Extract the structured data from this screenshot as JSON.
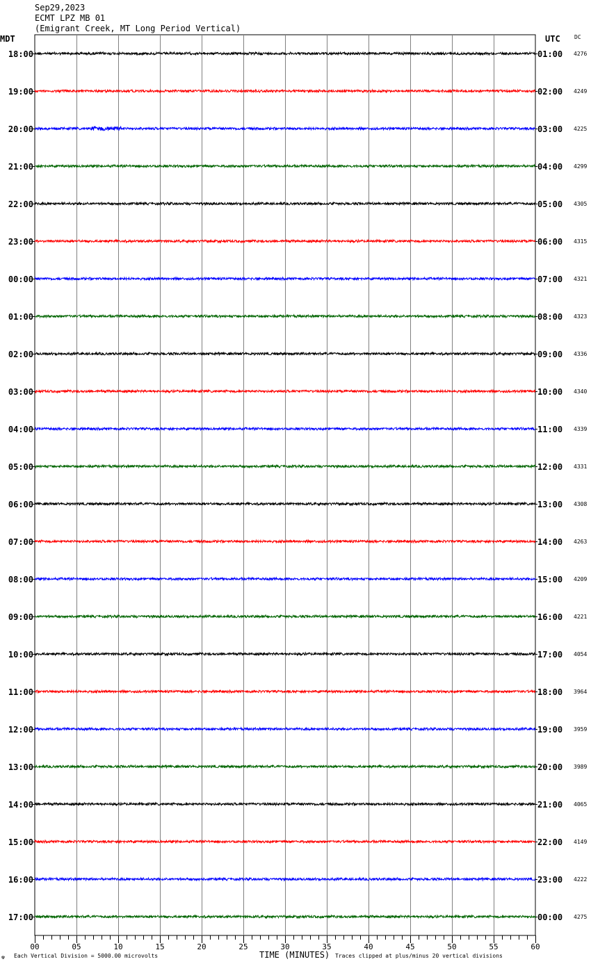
{
  "header": {
    "date": "Sep29,2023",
    "station": "ECMT LPZ MB 01",
    "location": "(Emigrant Creek, MT Long Period Vertical)"
  },
  "left_zone": "MDT",
  "right_zone": "UTC",
  "dc_label": "DC",
  "footer": {
    "left_mark": "☢",
    "division": "Each Vertical Division = 5000.00 microvolts",
    "xlabel": "TIME (MINUTES)",
    "clip": "Traces clipped at plus/minus 20 vertical divisions"
  },
  "colors": [
    "#000000",
    "#ff0000",
    "#0000ff",
    "#006400"
  ],
  "chart_data": {
    "type": "line",
    "xlabel": "TIME (MINUTES)",
    "xlim": [
      0,
      60
    ],
    "xticks": [
      "00",
      "05",
      "10",
      "15",
      "20",
      "25",
      "30",
      "35",
      "40",
      "45",
      "50",
      "55",
      "60"
    ],
    "grid": true,
    "rows": [
      {
        "mdt": "18:00",
        "utc": "01:00",
        "dc": "4276"
      },
      {
        "mdt": "19:00",
        "utc": "02:00",
        "dc": "4249"
      },
      {
        "mdt": "20:00",
        "utc": "03:00",
        "dc": "4225"
      },
      {
        "mdt": "21:00",
        "utc": "04:00",
        "dc": "4299"
      },
      {
        "mdt": "22:00",
        "utc": "05:00",
        "dc": "4305"
      },
      {
        "mdt": "23:00",
        "utc": "06:00",
        "dc": "4315"
      },
      {
        "mdt": "00:00",
        "utc": "07:00",
        "dc": "4321"
      },
      {
        "mdt": "01:00",
        "utc": "08:00",
        "dc": "4323"
      },
      {
        "mdt": "02:00",
        "utc": "09:00",
        "dc": "4336"
      },
      {
        "mdt": "03:00",
        "utc": "10:00",
        "dc": "4340"
      },
      {
        "mdt": "04:00",
        "utc": "11:00",
        "dc": "4339"
      },
      {
        "mdt": "05:00",
        "utc": "12:00",
        "dc": "4331"
      },
      {
        "mdt": "06:00",
        "utc": "13:00",
        "dc": "4308"
      },
      {
        "mdt": "07:00",
        "utc": "14:00",
        "dc": "4263"
      },
      {
        "mdt": "08:00",
        "utc": "15:00",
        "dc": "4209"
      },
      {
        "mdt": "09:00",
        "utc": "16:00",
        "dc": "4221"
      },
      {
        "mdt": "10:00",
        "utc": "17:00",
        "dc": "4054"
      },
      {
        "mdt": "11:00",
        "utc": "18:00",
        "dc": "3964"
      },
      {
        "mdt": "12:00",
        "utc": "19:00",
        "dc": "3959"
      },
      {
        "mdt": "13:00",
        "utc": "20:00",
        "dc": "3989"
      },
      {
        "mdt": "14:00",
        "utc": "21:00",
        "dc": "4065"
      },
      {
        "mdt": "15:00",
        "utc": "22:00",
        "dc": "4149"
      },
      {
        "mdt": "16:00",
        "utc": "23:00",
        "dc": "4222"
      },
      {
        "mdt": "17:00",
        "utc": "00:00",
        "dc": "4275"
      }
    ]
  }
}
